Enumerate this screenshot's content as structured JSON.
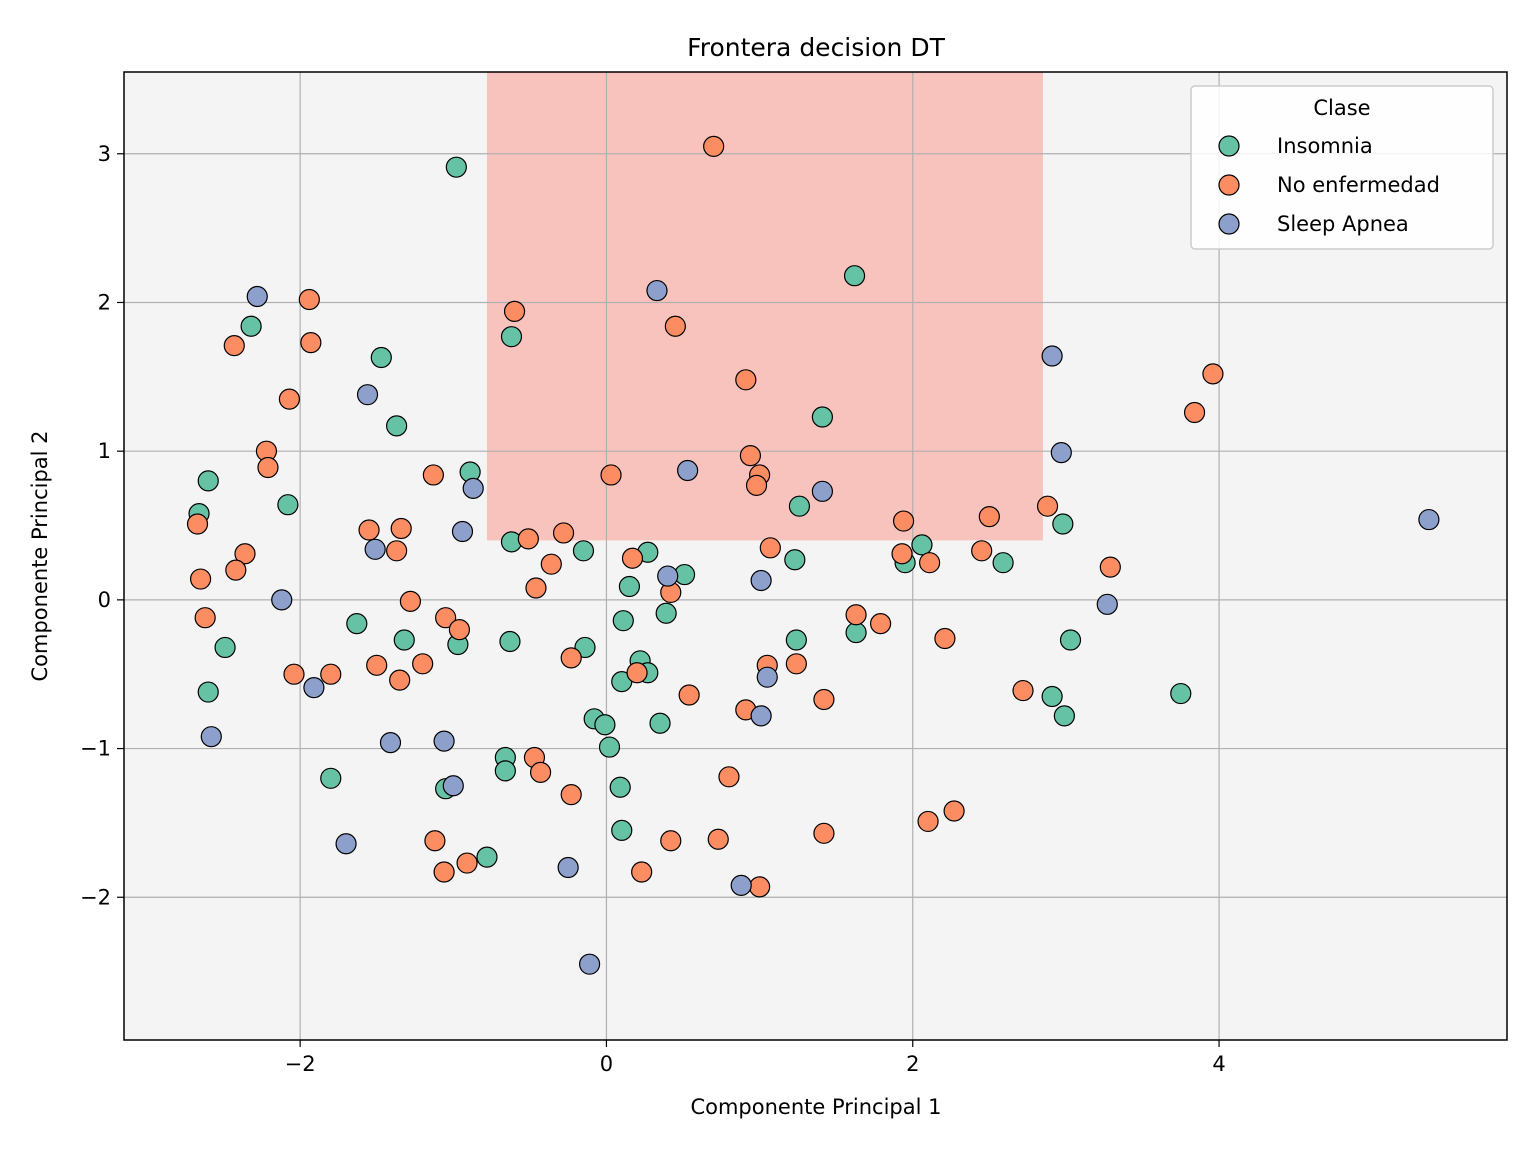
{
  "chart_data": {
    "type": "scatter",
    "title": "Frontera decision DT",
    "xlabel": "Componente Principal 1",
    "ylabel": "Componente Principal 2",
    "xlim": [
      -3.15,
      5.88
    ],
    "ylim": [
      -2.96,
      3.55
    ],
    "xticks": [
      -2,
      0,
      2,
      4
    ],
    "yticks": [
      -2,
      -1,
      0,
      1,
      2,
      3
    ],
    "xtick_labels": [
      "−2",
      "0",
      "2",
      "4"
    ],
    "ytick_labels": [
      "−2",
      "−1",
      "0",
      "1",
      "2",
      "3"
    ],
    "grid": true,
    "background_color": "#f4f4f4",
    "decision_region": {
      "class": "No enfermedad",
      "x_range": [
        -0.78,
        2.85
      ],
      "y_range": [
        0.4,
        3.55
      ],
      "color": "#f9c3bd"
    },
    "legend": {
      "title": "Clase",
      "placement": "top-right"
    },
    "series": [
      {
        "name": "Insomnia",
        "color": "#66c2a5",
        "points": [
          [
            -0.98,
            2.91
          ],
          [
            1.62,
            2.18
          ],
          [
            -2.32,
            1.84
          ],
          [
            -1.47,
            1.63
          ],
          [
            -1.37,
            1.17
          ],
          [
            -0.62,
            1.77
          ],
          [
            1.41,
            1.23
          ],
          [
            -2.6,
            0.8
          ],
          [
            -2.66,
            0.58
          ],
          [
            -2.08,
            0.64
          ],
          [
            -0.89,
            0.86
          ],
          [
            -0.62,
            0.39
          ],
          [
            -0.15,
            0.33
          ],
          [
            0.27,
            0.32
          ],
          [
            1.26,
            0.63
          ],
          [
            0.51,
            0.17
          ],
          [
            0.15,
            0.09
          ],
          [
            1.23,
            0.27
          ],
          [
            2.06,
            0.37
          ],
          [
            1.95,
            0.25
          ],
          [
            2.59,
            0.25
          ],
          [
            2.98,
            0.51
          ],
          [
            -1.63,
            -0.16
          ],
          [
            -2.49,
            -0.32
          ],
          [
            -1.32,
            -0.27
          ],
          [
            -0.97,
            -0.3
          ],
          [
            -0.63,
            -0.28
          ],
          [
            -0.14,
            -0.32
          ],
          [
            0.11,
            -0.14
          ],
          [
            0.39,
            -0.09
          ],
          [
            0.22,
            -0.41
          ],
          [
            0.27,
            -0.49
          ],
          [
            0.1,
            -0.55
          ],
          [
            -2.6,
            -0.62
          ],
          [
            1.24,
            -0.27
          ],
          [
            1.63,
            -0.22
          ],
          [
            3.03,
            -0.27
          ],
          [
            0.35,
            -0.83
          ],
          [
            -0.08,
            -0.8
          ],
          [
            -0.01,
            -0.84
          ],
          [
            0.02,
            -0.99
          ],
          [
            2.91,
            -0.65
          ],
          [
            2.99,
            -0.78
          ],
          [
            3.75,
            -0.63
          ],
          [
            -0.66,
            -1.06
          ],
          [
            -0.66,
            -1.15
          ],
          [
            -1.8,
            -1.2
          ],
          [
            -1.05,
            -1.27
          ],
          [
            0.09,
            -1.26
          ],
          [
            0.1,
            -1.55
          ],
          [
            -0.78,
            -1.73
          ]
        ]
      },
      {
        "name": "No enfermedad",
        "color": "#fc8d62",
        "points": [
          [
            0.7,
            3.05
          ],
          [
            -1.94,
            2.02
          ],
          [
            -0.6,
            1.94
          ],
          [
            0.45,
            1.84
          ],
          [
            -2.43,
            1.71
          ],
          [
            -1.93,
            1.73
          ],
          [
            0.91,
            1.48
          ],
          [
            3.96,
            1.52
          ],
          [
            3.84,
            1.26
          ],
          [
            -2.07,
            1.35
          ],
          [
            -2.22,
            1.0
          ],
          [
            -2.21,
            0.89
          ],
          [
            -1.13,
            0.84
          ],
          [
            0.03,
            0.84
          ],
          [
            0.94,
            0.97
          ],
          [
            1.0,
            0.84
          ],
          [
            0.98,
            0.77
          ],
          [
            2.88,
            0.63
          ],
          [
            2.5,
            0.56
          ],
          [
            1.94,
            0.53
          ],
          [
            -2.67,
            0.51
          ],
          [
            -1.55,
            0.47
          ],
          [
            -1.34,
            0.48
          ],
          [
            -1.37,
            0.33
          ],
          [
            -0.51,
            0.41
          ],
          [
            -0.28,
            0.45
          ],
          [
            1.07,
            0.35
          ],
          [
            1.93,
            0.31
          ],
          [
            2.11,
            0.25
          ],
          [
            2.45,
            0.33
          ],
          [
            3.29,
            0.22
          ],
          [
            -2.36,
            0.31
          ],
          [
            -2.42,
            0.2
          ],
          [
            -0.36,
            0.24
          ],
          [
            0.17,
            0.28
          ],
          [
            -0.46,
            0.08
          ],
          [
            0.42,
            0.05
          ],
          [
            -2.65,
            0.14
          ],
          [
            -2.62,
            -0.12
          ],
          [
            -1.28,
            -0.01
          ],
          [
            -1.05,
            -0.12
          ],
          [
            -0.96,
            -0.2
          ],
          [
            1.63,
            -0.1
          ],
          [
            1.79,
            -0.16
          ],
          [
            2.21,
            -0.26
          ],
          [
            -2.04,
            -0.5
          ],
          [
            -1.8,
            -0.5
          ],
          [
            -1.5,
            -0.44
          ],
          [
            -1.2,
            -0.43
          ],
          [
            -1.35,
            -0.54
          ],
          [
            -0.23,
            -0.39
          ],
          [
            0.2,
            -0.49
          ],
          [
            1.05,
            -0.44
          ],
          [
            1.24,
            -0.43
          ],
          [
            2.72,
            -0.61
          ],
          [
            0.54,
            -0.64
          ],
          [
            0.91,
            -0.74
          ],
          [
            1.42,
            -0.67
          ],
          [
            -0.47,
            -1.06
          ],
          [
            -0.43,
            -1.16
          ],
          [
            0.8,
            -1.19
          ],
          [
            -0.23,
            -1.31
          ],
          [
            2.1,
            -1.49
          ],
          [
            2.27,
            -1.42
          ],
          [
            -1.12,
            -1.62
          ],
          [
            -1.06,
            -1.83
          ],
          [
            -0.91,
            -1.77
          ],
          [
            0.42,
            -1.62
          ],
          [
            0.73,
            -1.61
          ],
          [
            1.42,
            -1.57
          ],
          [
            0.23,
            -1.83
          ],
          [
            1.0,
            -1.93
          ]
        ]
      },
      {
        "name": "Sleep Apnea",
        "color": "#8da0cb",
        "points": [
          [
            -2.28,
            2.04
          ],
          [
            0.33,
            2.08
          ],
          [
            2.91,
            1.64
          ],
          [
            -1.56,
            1.38
          ],
          [
            2.97,
            0.99
          ],
          [
            -0.87,
            0.75
          ],
          [
            0.53,
            0.87
          ],
          [
            1.41,
            0.73
          ],
          [
            -0.94,
            0.46
          ],
          [
            5.37,
            0.54
          ],
          [
            -1.51,
            0.34
          ],
          [
            -2.12,
            0.0
          ],
          [
            0.4,
            0.16
          ],
          [
            1.01,
            0.13
          ],
          [
            3.27,
            -0.03
          ],
          [
            -1.91,
            -0.59
          ],
          [
            1.05,
            -0.52
          ],
          [
            1.01,
            -0.78
          ],
          [
            -2.58,
            -0.92
          ],
          [
            -1.41,
            -0.96
          ],
          [
            -1.06,
            -0.95
          ],
          [
            -1.0,
            -1.25
          ],
          [
            -1.7,
            -1.64
          ],
          [
            -0.25,
            -1.8
          ],
          [
            0.88,
            -1.92
          ],
          [
            -0.11,
            -2.45
          ]
        ]
      }
    ]
  }
}
